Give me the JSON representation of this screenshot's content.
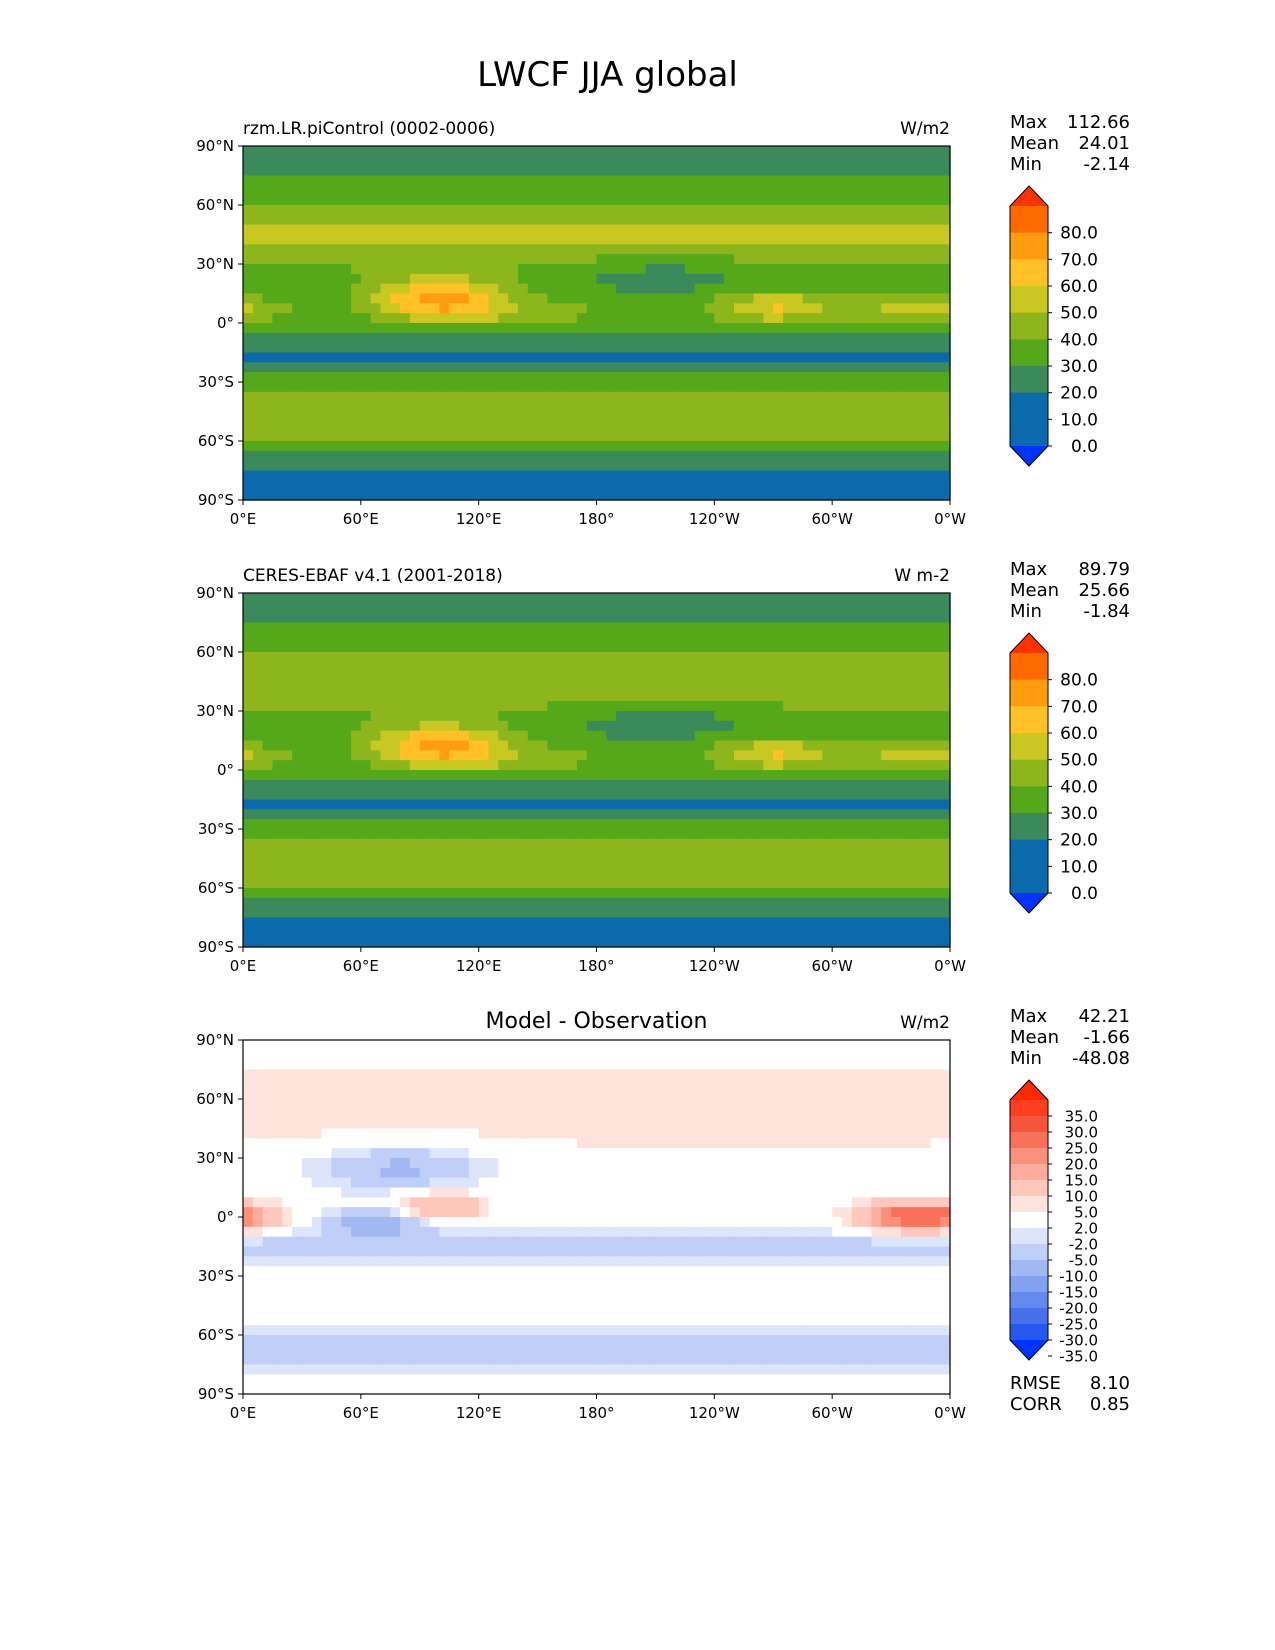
{
  "title": "LWCF JJA global",
  "chart_data": [
    {
      "type": "heatmap",
      "name": "model",
      "title_left": "rzm.LR.piControl (0002-0006)",
      "title_center": "",
      "units": "W/m2",
      "xlim": [
        0,
        360
      ],
      "ylim": [
        -90,
        90
      ],
      "x_ticks": [
        "0°E",
        "60°E",
        "120°E",
        "180°",
        "120°W",
        "60°W",
        "0°W"
      ],
      "y_ticks": [
        "90°N",
        "60°N",
        "30°N",
        "0°",
        "30°S",
        "60°S",
        "90°S"
      ],
      "stats": [
        {
          "label": "Max",
          "value": "112.66"
        },
        {
          "label": "Mean",
          "value": "24.01"
        },
        {
          "label": "Min",
          "value": "-2.14"
        }
      ],
      "colorbar": {
        "labels": [
          "80.0",
          "70.0",
          "60.0",
          "50.0",
          "40.0",
          "30.0",
          "20.0",
          "10.0",
          "0.0"
        ],
        "colors": [
          "#ff3300",
          "#ff6a00",
          "#ff9d0f",
          "#ffc125",
          "#c9c823",
          "#8db61c",
          "#55a81a",
          "#3b8a5c",
          "#0a6aac",
          "#0a6aac",
          "#0033ff"
        ],
        "extend": "both"
      }
    },
    {
      "type": "heatmap",
      "name": "observation",
      "title_left": "CERES-EBAF v4.1 (2001-2018)",
      "title_center": "",
      "units": "W m-2",
      "xlim": [
        0,
        360
      ],
      "ylim": [
        -90,
        90
      ],
      "x_ticks": [
        "0°E",
        "60°E",
        "120°E",
        "180°",
        "120°W",
        "60°W",
        "0°W"
      ],
      "y_ticks": [
        "90°N",
        "60°N",
        "30°N",
        "0°",
        "30°S",
        "60°S",
        "90°S"
      ],
      "stats": [
        {
          "label": "Max",
          "value": "89.79"
        },
        {
          "label": "Mean",
          "value": "25.66"
        },
        {
          "label": "Min",
          "value": "-1.84"
        }
      ],
      "colorbar": {
        "labels": [
          "80.0",
          "70.0",
          "60.0",
          "50.0",
          "40.0",
          "30.0",
          "20.0",
          "10.0",
          "0.0"
        ],
        "colors": [
          "#ff3300",
          "#ff6a00",
          "#ff9d0f",
          "#ffc125",
          "#c9c823",
          "#8db61c",
          "#55a81a",
          "#3b8a5c",
          "#0a6aac",
          "#0a6aac",
          "#0033ff"
        ],
        "extend": "both"
      }
    },
    {
      "type": "heatmap",
      "name": "difference",
      "title_left": "",
      "title_center": "Model - Observation",
      "units": "W/m2",
      "xlim": [
        0,
        360
      ],
      "ylim": [
        -90,
        90
      ],
      "x_ticks": [
        "0°E",
        "60°E",
        "120°E",
        "180°",
        "120°W",
        "60°W",
        "0°W"
      ],
      "y_ticks": [
        "90°N",
        "60°N",
        "30°N",
        "0°",
        "30°S",
        "60°S",
        "90°S"
      ],
      "stats": [
        {
          "label": "Max",
          "value": "42.21"
        },
        {
          "label": "Mean",
          "value": "-1.66"
        },
        {
          "label": "Min",
          "value": "-48.08"
        }
      ],
      "metrics": [
        {
          "label": "RMSE",
          "value": "8.10"
        },
        {
          "label": "CORR",
          "value": "0.85"
        }
      ],
      "colorbar": {
        "labels": [
          "35.0",
          "30.0",
          "25.0",
          "20.0",
          "15.0",
          "10.0",
          "5.0",
          "2.0",
          "-2.0",
          "-5.0",
          "-10.0",
          "-15.0",
          "-20.0",
          "-25.0",
          "-30.0",
          "-35.0"
        ],
        "colors": [
          "#ff2a00",
          "#ff3d1f",
          "#f6553c",
          "#f8715a",
          "#fa8f7b",
          "#fcac9c",
          "#fdc7bc",
          "#fee3dc",
          "#ffffff",
          "#dde5fb",
          "#c0cff7",
          "#a1b8f3",
          "#82a1ef",
          "#6489ec",
          "#4671ea",
          "#2458ee",
          "#0033ff"
        ],
        "extend": "both"
      }
    }
  ]
}
